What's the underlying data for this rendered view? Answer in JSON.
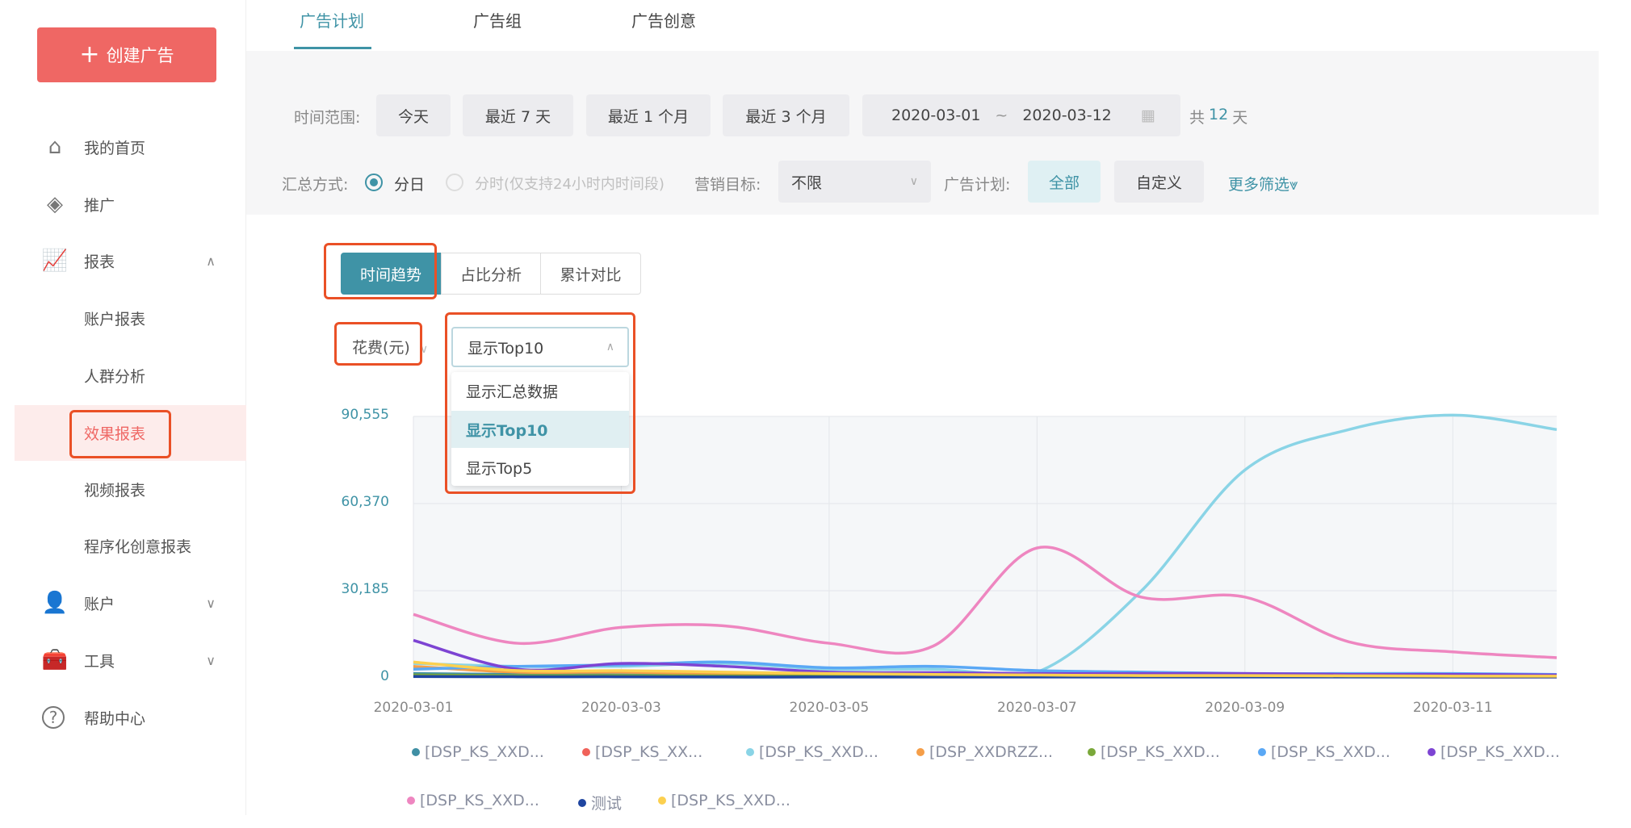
{
  "sidebar": {
    "create_label": "创建广告",
    "items": [
      {
        "label": "我的首页",
        "icon": "home-icon"
      },
      {
        "label": "推广",
        "icon": "layers-icon"
      },
      {
        "label": "报表",
        "icon": "chart-icon",
        "expanded": true
      },
      {
        "label": "账户报表"
      },
      {
        "label": "人群分析"
      },
      {
        "label": "效果报表",
        "active": true
      },
      {
        "label": "视频报表"
      },
      {
        "label": "程序化创意报表"
      },
      {
        "label": "账户",
        "icon": "user-icon",
        "expanded": false
      },
      {
        "label": "工具",
        "icon": "toolbox-icon",
        "expanded": false
      },
      {
        "label": "帮助中心",
        "icon": "help-icon"
      }
    ]
  },
  "tabs": [
    {
      "label": "广告计划",
      "active": true
    },
    {
      "label": "广告组"
    },
    {
      "label": "广告创意"
    }
  ],
  "filters": {
    "time_label": "时间范围:",
    "quick": [
      "今天",
      "最近 7 天",
      "最近 1 个月",
      "最近 3 个月"
    ],
    "date_start": "2020-03-01",
    "date_sep": "~",
    "date_end": "2020-03-12",
    "total_prefix": "共",
    "total_days": "12",
    "total_suffix": "天",
    "agg_label": "汇总方式:",
    "agg_day": "分日",
    "agg_hour": "分时(仅支持24小时内时间段)",
    "goal_label": "营销目标:",
    "goal_value": "不限",
    "plan_label": "广告计划:",
    "plan_all": "全部",
    "plan_custom": "自定义",
    "more": "更多筛选"
  },
  "chart_panel": {
    "segments": [
      {
        "label": "时间趋势",
        "active": true
      },
      {
        "label": "占比分析"
      },
      {
        "label": "累计对比"
      }
    ],
    "metric": "花费(元)",
    "topn_value": "显示Top10",
    "topn_options": [
      {
        "label": "显示汇总数据"
      },
      {
        "label": "显示Top10",
        "selected": true
      },
      {
        "label": "显示Top5"
      }
    ]
  },
  "chart_data": {
    "type": "line",
    "x": [
      "2020-03-01",
      "2020-03-02",
      "2020-03-03",
      "2020-03-04",
      "2020-03-05",
      "2020-03-06",
      "2020-03-07",
      "2020-03-08",
      "2020-03-09",
      "2020-03-10",
      "2020-03-11",
      "2020-03-12"
    ],
    "x_tick_labels": [
      "2020-03-01",
      "2020-03-03",
      "2020-03-05",
      "2020-03-07",
      "2020-03-09",
      "2020-03-11"
    ],
    "y_tick_labels": [
      "0",
      "30,185",
      "60,370",
      "90,555"
    ],
    "ylim": [
      0,
      90555
    ],
    "grid": true,
    "legend_position": "bottom",
    "series": [
      {
        "name": "[DSP_KS_XXD...",
        "color": "#3f8fa4",
        "values": [
          1500,
          1200,
          1000,
          1000,
          900,
          800,
          700,
          700,
          700,
          600,
          600,
          500
        ]
      },
      {
        "name": "[DSP_KS_XX...",
        "color": "#f0625a",
        "values": [
          800,
          700,
          600,
          600,
          500,
          500,
          400,
          400,
          400,
          400,
          300,
          300
        ]
      },
      {
        "name": "[DSP_KS_XXD...",
        "color": "#8ad4e6",
        "values": [
          5000,
          4000,
          4000,
          5000,
          3000,
          3000,
          2000,
          30000,
          72000,
          86000,
          91000,
          86000
        ]
      },
      {
        "name": "[DSP_XXDRZZ...",
        "color": "#f59e48",
        "values": [
          4000,
          2000,
          2000,
          1500,
          1200,
          1000,
          1000,
          1000,
          900,
          800,
          800,
          700
        ]
      },
      {
        "name": "[DSP_KS_XXD...",
        "color": "#7aa83a",
        "values": [
          1000,
          800,
          800,
          700,
          600,
          600,
          500,
          500,
          500,
          400,
          400,
          400
        ]
      },
      {
        "name": "[DSP_KS_XXD...",
        "color": "#5aa8f5",
        "values": [
          3000,
          4000,
          4500,
          5500,
          3500,
          4000,
          2500,
          2000,
          1500,
          1500,
          1500,
          1200
        ]
      },
      {
        "name": "[DSP_KS_XXD...",
        "color": "#7d44d3",
        "values": [
          13000,
          3000,
          5000,
          4000,
          2000,
          1800,
          1500,
          1500,
          1500,
          1200,
          1200,
          1000
        ]
      },
      {
        "name": "[DSP_KS_XXD...",
        "color": "#ee86c0",
        "values": [
          22000,
          12000,
          17500,
          18000,
          12000,
          11000,
          45000,
          28000,
          28000,
          12500,
          9000,
          7000
        ]
      },
      {
        "name": "测试",
        "color": "#1f45a0",
        "values": [
          500,
          400,
          400,
          300,
          300,
          300,
          300,
          300,
          300,
          300,
          300,
          300
        ]
      },
      {
        "name": "[DSP_KS_XXD...",
        "color": "#fcd04f",
        "values": [
          5500,
          2500,
          2500,
          2000,
          1500,
          1200,
          1000,
          800,
          800,
          700,
          600,
          600
        ]
      }
    ]
  }
}
